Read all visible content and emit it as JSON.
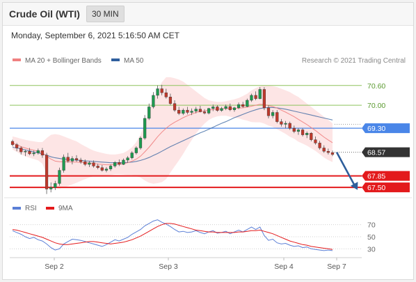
{
  "header": {
    "title": "Crude Oil (WTI)",
    "timeframe": "30 MIN",
    "datetime": "Monday, September 6, 2021 5:16:50 AM CET"
  },
  "legend": {
    "ma20_label": "MA 20 + Bollinger Bands",
    "ma50_label": "MA 50",
    "copyright": "Research © 2021 Trading Central",
    "rsi_label": "RSI",
    "rsi9_label": "9MA"
  },
  "colors": {
    "ma20": "#f08080",
    "ma50": "#2f5f9e",
    "band": "#fde0e0",
    "bull": "#1e9b50",
    "bear": "#c0392b",
    "rsi": "#5b7fd6",
    "rsi9": "#e41a1c",
    "support": "#e31a1c",
    "pivot": "#4a86e8",
    "resistance": "#8dc35c",
    "arrow": "#2e5e9b"
  },
  "chart_data": [
    {
      "type": "candlestick",
      "ylim": [
        67.27,
        70.87
      ],
      "x_ticks": [
        "Sep 2",
        "Sep 3",
        "Sep 4",
        "Sep 7"
      ],
      "candles": [
        [
          68.9,
          68.95,
          68.75,
          68.8
        ],
        [
          68.8,
          68.85,
          68.6,
          68.7
        ],
        [
          68.7,
          68.75,
          68.5,
          68.58
        ],
        [
          68.58,
          68.65,
          68.45,
          68.6
        ],
        [
          68.6,
          68.7,
          68.48,
          68.52
        ],
        [
          68.52,
          68.62,
          68.45,
          68.55
        ],
        [
          68.55,
          68.68,
          68.5,
          68.62
        ],
        [
          68.62,
          68.7,
          68.4,
          68.48
        ],
        [
          68.48,
          68.55,
          67.3,
          67.45
        ],
        [
          67.45,
          67.65,
          67.35,
          67.5
        ],
        [
          67.5,
          67.7,
          67.42,
          67.62
        ],
        [
          67.62,
          68.1,
          67.55,
          68.02
        ],
        [
          68.02,
          68.5,
          67.95,
          68.42
        ],
        [
          68.42,
          68.55,
          68.25,
          68.3
        ],
        [
          68.3,
          68.45,
          68.2,
          68.38
        ],
        [
          68.38,
          68.48,
          68.28,
          68.33
        ],
        [
          68.33,
          68.4,
          68.22,
          68.28
        ],
        [
          68.28,
          68.35,
          68.15,
          68.2
        ],
        [
          68.2,
          68.3,
          68.12,
          68.25
        ],
        [
          68.25,
          68.32,
          68.1,
          68.15
        ],
        [
          68.15,
          68.22,
          68.05,
          68.1
        ],
        [
          68.1,
          68.18,
          67.98,
          68.02
        ],
        [
          68.02,
          68.12,
          67.96,
          68.06
        ],
        [
          68.06,
          68.2,
          68.0,
          68.15
        ],
        [
          68.15,
          68.3,
          68.1,
          68.26
        ],
        [
          68.26,
          68.35,
          68.15,
          68.2
        ],
        [
          68.2,
          68.38,
          68.18,
          68.33
        ],
        [
          68.33,
          68.45,
          68.25,
          68.4
        ],
        [
          68.4,
          68.6,
          68.35,
          68.55
        ],
        [
          68.55,
          68.75,
          68.5,
          68.7
        ],
        [
          68.7,
          69.05,
          68.65,
          69.0
        ],
        [
          69.0,
          69.7,
          68.95,
          69.6
        ],
        [
          69.6,
          70.05,
          69.55,
          69.95
        ],
        [
          69.95,
          70.4,
          69.9,
          70.3
        ],
        [
          70.3,
          70.6,
          70.2,
          70.5
        ],
        [
          70.5,
          70.62,
          70.3,
          70.38
        ],
        [
          70.38,
          70.5,
          70.2,
          70.25
        ],
        [
          70.25,
          70.35,
          70.0,
          70.05
        ],
        [
          70.05,
          70.15,
          69.8,
          69.85
        ],
        [
          69.85,
          69.95,
          69.7,
          69.75
        ],
        [
          69.75,
          69.9,
          69.7,
          69.85
        ],
        [
          69.85,
          69.95,
          69.72,
          69.78
        ],
        [
          69.78,
          69.9,
          69.7,
          69.82
        ],
        [
          69.82,
          69.95,
          69.75,
          69.88
        ],
        [
          69.88,
          69.98,
          69.78,
          69.8
        ],
        [
          69.8,
          69.88,
          69.72,
          69.76
        ],
        [
          69.76,
          69.92,
          69.72,
          69.9
        ],
        [
          69.9,
          70.02,
          69.82,
          69.95
        ],
        [
          69.95,
          70.0,
          69.8,
          69.84
        ],
        [
          69.84,
          69.95,
          69.8,
          69.9
        ],
        [
          69.9,
          70.02,
          69.85,
          69.96
        ],
        [
          69.96,
          70.05,
          69.82,
          69.86
        ],
        [
          69.86,
          69.95,
          69.8,
          69.92
        ],
        [
          69.92,
          70.08,
          69.88,
          70.02
        ],
        [
          70.02,
          70.1,
          69.92,
          69.96
        ],
        [
          69.96,
          70.2,
          69.94,
          70.15
        ],
        [
          70.15,
          70.35,
          70.1,
          70.3
        ],
        [
          70.3,
          70.42,
          70.15,
          70.2
        ],
        [
          70.2,
          70.55,
          70.18,
          70.48
        ],
        [
          70.48,
          70.55,
          69.85,
          69.92
        ],
        [
          69.92,
          70.0,
          69.6,
          69.68
        ],
        [
          69.68,
          69.85,
          69.6,
          69.78
        ],
        [
          69.78,
          69.85,
          69.45,
          69.5
        ],
        [
          69.5,
          69.58,
          69.35,
          69.42
        ],
        [
          69.42,
          69.52,
          69.3,
          69.45
        ],
        [
          69.45,
          69.5,
          69.25,
          69.3
        ],
        [
          69.3,
          69.38,
          69.15,
          69.2
        ],
        [
          69.2,
          69.3,
          69.1,
          69.25
        ],
        [
          69.25,
          69.3,
          69.05,
          69.1
        ],
        [
          69.1,
          69.2,
          69.0,
          69.15
        ],
        [
          69.15,
          69.18,
          68.9,
          68.95
        ],
        [
          68.95,
          69.05,
          68.8,
          68.85
        ],
        [
          68.85,
          68.92,
          68.65,
          68.7
        ],
        [
          68.7,
          68.78,
          68.55,
          68.6
        ],
        [
          68.6,
          68.68,
          68.5,
          68.56
        ],
        [
          68.56,
          68.62,
          68.45,
          68.5
        ]
      ],
      "ma20": [
        68.85,
        68.8,
        68.74,
        68.7,
        68.66,
        68.63,
        68.6,
        68.55,
        68.45,
        68.36,
        68.3,
        68.28,
        68.28,
        68.27,
        68.27,
        68.27,
        68.26,
        68.25,
        68.24,
        68.23,
        68.21,
        68.2,
        68.19,
        68.19,
        68.2,
        68.21,
        68.22,
        68.25,
        68.3,
        68.36,
        68.45,
        68.58,
        68.72,
        68.88,
        69.04,
        69.18,
        69.3,
        69.4,
        69.48,
        69.55,
        69.62,
        69.68,
        69.73,
        69.78,
        69.81,
        69.83,
        69.85,
        69.87,
        69.88,
        69.89,
        69.9,
        69.9,
        69.9,
        69.91,
        69.92,
        69.94,
        69.97,
        70.0,
        70.03,
        70.02,
        69.99,
        69.96,
        69.91,
        69.85,
        69.79,
        69.72,
        69.65,
        69.57,
        69.49,
        69.41,
        69.32,
        69.23,
        69.13,
        69.03,
        68.94,
        68.86
      ],
      "ma50": [
        68.72,
        68.7,
        68.67,
        68.64,
        68.61,
        68.58,
        68.55,
        68.52,
        68.48,
        68.43,
        68.4,
        68.38,
        68.36,
        68.35,
        68.34,
        68.33,
        68.32,
        68.31,
        68.3,
        68.29,
        68.28,
        68.27,
        68.26,
        68.25,
        68.25,
        68.25,
        68.25,
        68.26,
        68.27,
        68.29,
        68.32,
        68.36,
        68.41,
        68.47,
        68.53,
        68.6,
        68.67,
        68.74,
        68.8,
        68.86,
        68.92,
        68.98,
        69.04,
        69.1,
        69.16,
        69.21,
        69.27,
        69.33,
        69.39,
        69.45,
        69.5,
        69.56,
        69.62,
        69.67,
        69.72,
        69.77,
        69.82,
        69.86,
        69.9,
        69.92,
        69.93,
        69.93,
        69.92,
        69.9,
        69.88,
        69.85,
        69.82,
        69.79,
        69.76,
        69.73,
        69.7,
        69.67,
        69.64,
        69.61,
        69.58,
        69.55
      ],
      "bb_upper": [
        69.05,
        69.02,
        68.98,
        68.95,
        68.92,
        68.9,
        68.88,
        68.88,
        69.0,
        69.1,
        69.12,
        69.1,
        69.05,
        69.0,
        68.95,
        68.9,
        68.82,
        68.75,
        68.68,
        68.62,
        68.58,
        68.55,
        68.52,
        68.5,
        68.5,
        68.52,
        68.55,
        68.62,
        68.72,
        68.88,
        69.1,
        69.45,
        69.8,
        70.15,
        70.45,
        70.7,
        70.85,
        70.85,
        70.82,
        70.78,
        70.72,
        70.62,
        70.52,
        70.42,
        70.32,
        70.22,
        70.15,
        70.12,
        70.1,
        70.1,
        70.12,
        70.15,
        70.18,
        70.22,
        70.28,
        70.35,
        70.45,
        70.52,
        70.58,
        70.6,
        70.6,
        70.58,
        70.55,
        70.5,
        70.45,
        70.4,
        70.32,
        70.25,
        70.15,
        70.05,
        69.95,
        69.85,
        69.75,
        69.65,
        69.55,
        69.45
      ],
      "bb_lower": [
        68.65,
        68.58,
        68.5,
        68.45,
        68.4,
        68.36,
        68.32,
        68.22,
        67.9,
        67.62,
        67.48,
        67.46,
        67.5,
        67.54,
        67.59,
        67.64,
        67.7,
        67.75,
        67.8,
        67.84,
        67.84,
        67.85,
        67.86,
        67.88,
        67.9,
        67.9,
        67.89,
        67.88,
        67.88,
        67.84,
        67.8,
        67.71,
        67.64,
        67.61,
        67.63,
        67.66,
        67.75,
        67.95,
        68.14,
        68.32,
        68.52,
        68.74,
        68.94,
        69.14,
        69.3,
        69.44,
        69.55,
        69.62,
        69.66,
        69.68,
        69.68,
        69.65,
        69.62,
        69.6,
        69.56,
        69.53,
        69.49,
        69.48,
        69.48,
        69.44,
        69.38,
        69.34,
        69.27,
        69.2,
        69.13,
        69.04,
        68.98,
        68.89,
        68.83,
        68.77,
        68.69,
        68.61,
        68.51,
        68.41,
        68.33,
        68.27
      ],
      "levels": {
        "resistance": [
          70.6,
          70.0
        ],
        "pivot": 69.3,
        "last": 68.57,
        "support": [
          67.85,
          67.5
        ]
      },
      "level_labels": [
        "70.60",
        "70.00",
        "69.30",
        "68.57",
        "67.85",
        "67.50"
      ],
      "arrow": {
        "from": 68.57,
        "to": 67.55
      }
    },
    {
      "type": "line",
      "y_ticks": [
        "70",
        "50",
        "30"
      ],
      "y_tick_values": [
        70,
        50,
        30
      ],
      "ylim": [
        20,
        80
      ],
      "series": [
        {
          "name": "RSI",
          "values": [
            60,
            57,
            54,
            50,
            47,
            49,
            45,
            43,
            38,
            32,
            28,
            30,
            38,
            42,
            46,
            45,
            44,
            42,
            40,
            38,
            36,
            34,
            37,
            41,
            45,
            43,
            46,
            49,
            54,
            58,
            62,
            68,
            72,
            76,
            78,
            74,
            71,
            67,
            62,
            58,
            59,
            57,
            58,
            60,
            57,
            55,
            58,
            60,
            56,
            57,
            59,
            55,
            58,
            61,
            58,
            62,
            66,
            62,
            66,
            52,
            44,
            46,
            40,
            38,
            39,
            36,
            34,
            35,
            32,
            33,
            30,
            29,
            28,
            27,
            28,
            27
          ]
        },
        {
          "name": "9MA",
          "values": [
            62,
            61,
            59,
            57,
            55,
            53,
            51,
            49,
            46,
            43,
            40,
            38,
            37,
            37,
            38,
            39,
            40,
            41,
            42,
            42,
            41,
            40,
            39,
            38,
            39,
            40,
            41,
            43,
            45,
            48,
            51,
            55,
            59,
            63,
            67,
            70,
            72,
            72,
            71,
            69,
            67,
            65,
            63,
            61,
            60,
            59,
            58,
            58,
            57,
            57,
            57,
            57,
            57,
            58,
            58,
            59,
            60,
            60,
            61,
            59,
            57,
            55,
            52,
            49,
            46,
            43,
            41,
            39,
            37,
            36,
            34,
            33,
            32,
            31,
            30,
            29
          ]
        }
      ]
    }
  ]
}
